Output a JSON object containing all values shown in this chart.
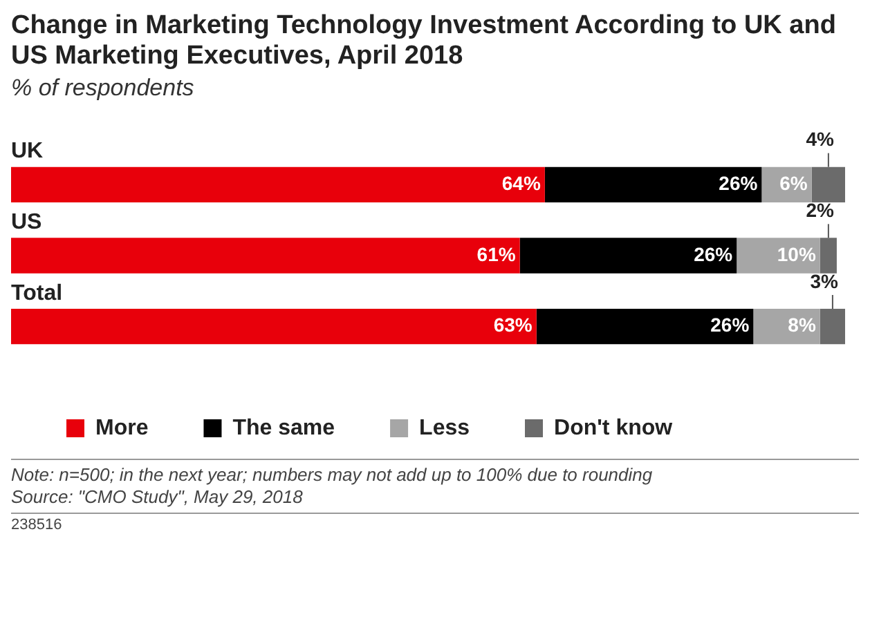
{
  "chart_data": {
    "type": "bar",
    "orientation": "horizontal",
    "stacked": true,
    "title": "Change in Marketing Technology Investment According to UK and US Marketing Executives, April 2018",
    "subtitle": "% of respondents",
    "categories": [
      "UK",
      "US",
      "Total"
    ],
    "series": [
      {
        "name": "More",
        "color": "#e8000b",
        "values": [
          64,
          61,
          63
        ],
        "value_labels": [
          "64%",
          "61%",
          "63%"
        ]
      },
      {
        "name": "The same",
        "color": "#000000",
        "values": [
          26,
          26,
          26
        ],
        "value_labels": [
          "26%",
          "26%",
          "26%"
        ]
      },
      {
        "name": "Less",
        "color": "#a6a6a6",
        "values": [
          6,
          10,
          8
        ],
        "value_labels": [
          "6%",
          "10%",
          "8%"
        ]
      },
      {
        "name": "Don't know",
        "color": "#6b6b6b",
        "values": [
          4,
          2,
          3
        ],
        "value_labels": [
          "4%",
          "2%",
          "3%"
        ]
      }
    ],
    "legend": "bottom",
    "annotations": [
      "Note: n=500; in the next year; numbers may not add up to 100% due to rounding",
      "Source: \"CMO Study\", May 29, 2018",
      "238516"
    ]
  }
}
